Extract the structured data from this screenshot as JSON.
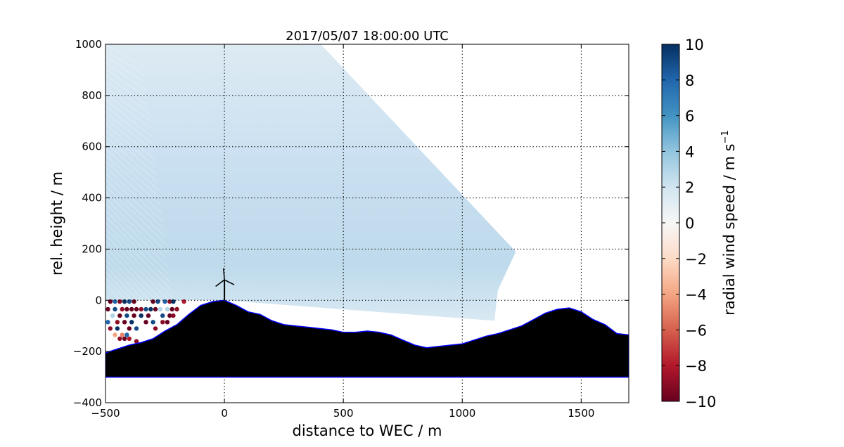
{
  "chart_data": {
    "type": "scatter",
    "title": "2017/05/07 18:00:00 UTC",
    "xlabel": "distance to WEC / m",
    "ylabel": "rel. height / m",
    "xlim": [
      -500,
      1700
    ],
    "ylim": [
      -400,
      1000
    ],
    "xticks": [
      -500,
      0,
      500,
      1000,
      1500
    ],
    "xtick_labels": [
      "−500",
      "0",
      "500",
      "1000",
      "1500"
    ],
    "yticks": [
      -400,
      -200,
      0,
      200,
      400,
      600,
      800,
      1000
    ],
    "ytick_labels": [
      "−400",
      "−200",
      "0",
      "200",
      "400",
      "600",
      "800",
      "1000"
    ],
    "grid": true,
    "colorbar": {
      "label": "radial wind speed / m s",
      "label_superscript": "−1",
      "range": [
        -10,
        10
      ],
      "ticks": [
        -10,
        -8,
        -6,
        -4,
        -2,
        0,
        2,
        4,
        6,
        8,
        10
      ],
      "tick_labels": [
        "−10",
        "−8",
        "−6",
        "−4",
        "−2",
        "0",
        "2",
        "4",
        "6",
        "8",
        "10"
      ],
      "colormap": "RdBu",
      "colors": [
        "#67001f",
        "#b2182b",
        "#d6604d",
        "#f4a582",
        "#fddbc7",
        "#f7f7f7",
        "#d1e5f0",
        "#92c5de",
        "#4393c3",
        "#2166ac",
        "#053061"
      ]
    },
    "scan_sector": {
      "description_values": "radial wind speed field, approx. 2 to 3 m s-1 above terrain",
      "outline": [
        [
          -500,
          1000
        ],
        [
          405,
          1000
        ],
        [
          1225,
          190
        ],
        [
          1195,
          130
        ],
        [
          1150,
          40
        ],
        [
          1135,
          -80
        ],
        [
          0,
          0
        ],
        [
          -500,
          0
        ]
      ],
      "field_value": 2.5
    },
    "terrain": {
      "floor": -300,
      "profile": [
        [
          -500,
          -205
        ],
        [
          -450,
          -190
        ],
        [
          -400,
          -175
        ],
        [
          -350,
          -165
        ],
        [
          -300,
          -150
        ],
        [
          -250,
          -120
        ],
        [
          -200,
          -95
        ],
        [
          -150,
          -55
        ],
        [
          -100,
          -20
        ],
        [
          -50,
          -5
        ],
        [
          0,
          0
        ],
        [
          50,
          -20
        ],
        [
          100,
          -45
        ],
        [
          150,
          -55
        ],
        [
          200,
          -80
        ],
        [
          250,
          -95
        ],
        [
          300,
          -100
        ],
        [
          350,
          -105
        ],
        [
          400,
          -110
        ],
        [
          450,
          -115
        ],
        [
          500,
          -125
        ],
        [
          550,
          -125
        ],
        [
          600,
          -120
        ],
        [
          650,
          -125
        ],
        [
          700,
          -135
        ],
        [
          750,
          -155
        ],
        [
          800,
          -175
        ],
        [
          850,
          -185
        ],
        [
          900,
          -180
        ],
        [
          950,
          -175
        ],
        [
          1000,
          -170
        ],
        [
          1050,
          -155
        ],
        [
          1100,
          -140
        ],
        [
          1150,
          -130
        ],
        [
          1200,
          -115
        ],
        [
          1250,
          -100
        ],
        [
          1300,
          -75
        ],
        [
          1350,
          -50
        ],
        [
          1400,
          -35
        ],
        [
          1450,
          -30
        ],
        [
          1500,
          -45
        ],
        [
          1550,
          -75
        ],
        [
          1600,
          -95
        ],
        [
          1650,
          -130
        ],
        [
          1700,
          -135
        ]
      ],
      "fill_color": "#000000",
      "edge_color": "#0000ff"
    },
    "turbine": {
      "x": 0,
      "hub_height": 80,
      "blade_length": 45
    },
    "noise_points": [
      {
        "x": -480,
        "y": -5,
        "v": -10
      },
      {
        "x": -460,
        "y": -5,
        "v": 8
      },
      {
        "x": -440,
        "y": -5,
        "v": -9
      },
      {
        "x": -420,
        "y": -5,
        "v": 10
      },
      {
        "x": -400,
        "y": -5,
        "v": 9
      },
      {
        "x": -380,
        "y": -5,
        "v": -10
      },
      {
        "x": -300,
        "y": -5,
        "v": -10
      },
      {
        "x": -280,
        "y": -5,
        "v": 9
      },
      {
        "x": -250,
        "y": -5,
        "v": 8
      },
      {
        "x": -230,
        "y": -5,
        "v": -9
      },
      {
        "x": -215,
        "y": -5,
        "v": 10
      },
      {
        "x": -170,
        "y": -5,
        "v": -8
      },
      {
        "x": -490,
        "y": -35,
        "v": -10
      },
      {
        "x": -460,
        "y": -35,
        "v": 9
      },
      {
        "x": -430,
        "y": -35,
        "v": -9
      },
      {
        "x": -410,
        "y": -35,
        "v": -10
      },
      {
        "x": -390,
        "y": -35,
        "v": -10
      },
      {
        "x": -370,
        "y": -35,
        "v": -10
      },
      {
        "x": -350,
        "y": -35,
        "v": -9
      },
      {
        "x": -330,
        "y": -35,
        "v": 9
      },
      {
        "x": -310,
        "y": -35,
        "v": 10
      },
      {
        "x": -290,
        "y": -35,
        "v": -10
      },
      {
        "x": -270,
        "y": -35,
        "v": 3
      },
      {
        "x": -240,
        "y": -35,
        "v": 3
      },
      {
        "x": -220,
        "y": -35,
        "v": -10
      },
      {
        "x": -200,
        "y": -35,
        "v": -9
      },
      {
        "x": -470,
        "y": -60,
        "v": 3
      },
      {
        "x": -440,
        "y": -60,
        "v": -10
      },
      {
        "x": -410,
        "y": -60,
        "v": 9
      },
      {
        "x": -380,
        "y": -60,
        "v": -10
      },
      {
        "x": -350,
        "y": -60,
        "v": 10
      },
      {
        "x": -320,
        "y": -60,
        "v": -10
      },
      {
        "x": -260,
        "y": -60,
        "v": 9
      },
      {
        "x": -230,
        "y": -60,
        "v": -10
      },
      {
        "x": -215,
        "y": -60,
        "v": -9
      },
      {
        "x": -490,
        "y": -85,
        "v": 8
      },
      {
        "x": -450,
        "y": -85,
        "v": -9
      },
      {
        "x": -420,
        "y": -85,
        "v": -10
      },
      {
        "x": -390,
        "y": -85,
        "v": 10
      },
      {
        "x": -330,
        "y": -85,
        "v": -10
      },
      {
        "x": -300,
        "y": -85,
        "v": 9
      },
      {
        "x": -260,
        "y": -85,
        "v": -9
      },
      {
        "x": -240,
        "y": -85,
        "v": -10
      },
      {
        "x": -480,
        "y": -110,
        "v": -9
      },
      {
        "x": -450,
        "y": -110,
        "v": 10
      },
      {
        "x": -400,
        "y": -110,
        "v": -10
      },
      {
        "x": -370,
        "y": -110,
        "v": 9
      },
      {
        "x": -290,
        "y": -110,
        "v": -9
      },
      {
        "x": -460,
        "y": -135,
        "v": -4
      },
      {
        "x": -430,
        "y": -135,
        "v": -5
      },
      {
        "x": -410,
        "y": -135,
        "v": 8
      },
      {
        "x": -370,
        "y": -160,
        "v": -9
      },
      {
        "x": -440,
        "y": -150,
        "v": -9
      },
      {
        "x": -420,
        "y": -150,
        "v": -10
      },
      {
        "x": -400,
        "y": -150,
        "v": -8
      }
    ]
  }
}
